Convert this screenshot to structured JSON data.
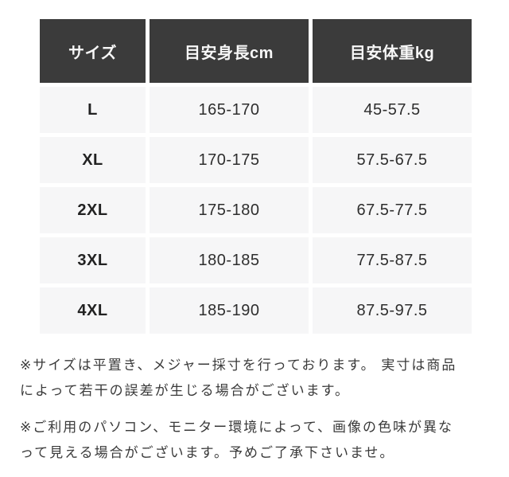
{
  "table": {
    "headers": [
      "サイズ",
      "目安身長cm",
      "目安体重kg"
    ],
    "rows": [
      {
        "size": "L",
        "height": "165-170",
        "weight": "45-57.5"
      },
      {
        "size": "XL",
        "height": "170-175",
        "weight": "57.5-67.5"
      },
      {
        "size": "2XL",
        "height": "175-180",
        "weight": "67.5-77.5"
      },
      {
        "size": "3XL",
        "height": "180-185",
        "weight": "77.5-87.5"
      },
      {
        "size": "4XL",
        "height": "185-190",
        "weight": "87.5-97.5"
      }
    ]
  },
  "notes": [
    {
      "lines": [
        "※サイズは平置き、メジャー採寸を行っております。 実寸は商品",
        "によって若干の誤差が生じる場合がございます。"
      ]
    },
    {
      "lines": [
        "※ご利用のパソコン、モニター環境によって、画像の色味が異な",
        "って見える場合がございます。予めご了承下さいませ。"
      ]
    }
  ],
  "colors": {
    "page_bg": "#ffffff",
    "header_bg": "#3b3b3b",
    "header_text": "#f7f7f7",
    "row_bg": "#f6f6f7",
    "row_text": "#2e2e2e",
    "note_text": "#3a3a3a"
  }
}
